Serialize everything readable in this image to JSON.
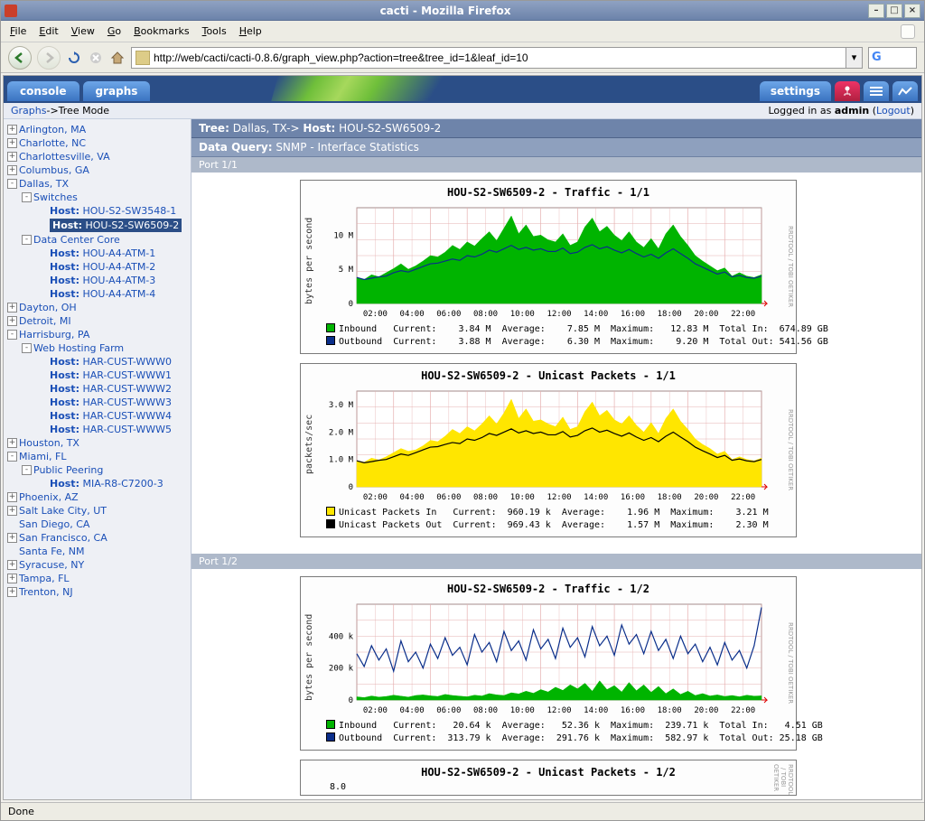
{
  "window": {
    "title": "cacti - Mozilla Firefox"
  },
  "menubar": [
    "File",
    "Edit",
    "View",
    "Go",
    "Bookmarks",
    "Tools",
    "Help"
  ],
  "url": "http://web/cacti/cacti-0.8.6/graph_view.php?action=tree&tree_id=1&leaf_id=10",
  "tabs": {
    "console": "console",
    "graphs": "graphs",
    "settings": "settings"
  },
  "breadcrumb": {
    "root": "Graphs",
    "sep": " -> ",
    "mode": "Tree Mode"
  },
  "login": {
    "prefix": "Logged in as ",
    "user": "admin",
    "logout": "Logout"
  },
  "tree": [
    {
      "l": 0,
      "exp": "+",
      "label": "Arlington, MA"
    },
    {
      "l": 0,
      "exp": "+",
      "label": "Charlotte, NC"
    },
    {
      "l": 0,
      "exp": "+",
      "label": "Charlottesville, VA"
    },
    {
      "l": 0,
      "exp": "+",
      "label": "Columbus, GA"
    },
    {
      "l": 0,
      "exp": "-",
      "label": "Dallas, TX"
    },
    {
      "l": 1,
      "exp": "-",
      "label": "Switches"
    },
    {
      "l": 2,
      "host": true,
      "label": "HOU-S2-SW3548-1"
    },
    {
      "l": 2,
      "host": true,
      "label": "HOU-S2-SW6509-2",
      "sel": true
    },
    {
      "l": 1,
      "exp": "-",
      "label": "Data Center Core"
    },
    {
      "l": 2,
      "host": true,
      "label": "HOU-A4-ATM-1"
    },
    {
      "l": 2,
      "host": true,
      "label": "HOU-A4-ATM-2"
    },
    {
      "l": 2,
      "host": true,
      "label": "HOU-A4-ATM-3"
    },
    {
      "l": 2,
      "host": true,
      "label": "HOU-A4-ATM-4"
    },
    {
      "l": 0,
      "exp": "+",
      "label": "Dayton, OH"
    },
    {
      "l": 0,
      "exp": "+",
      "label": "Detroit, MI"
    },
    {
      "l": 0,
      "exp": "-",
      "label": "Harrisburg, PA"
    },
    {
      "l": 1,
      "exp": "-",
      "label": "Web Hosting Farm"
    },
    {
      "l": 2,
      "host": true,
      "label": "HAR-CUST-WWW0"
    },
    {
      "l": 2,
      "host": true,
      "label": "HAR-CUST-WWW1"
    },
    {
      "l": 2,
      "host": true,
      "label": "HAR-CUST-WWW2"
    },
    {
      "l": 2,
      "host": true,
      "label": "HAR-CUST-WWW3"
    },
    {
      "l": 2,
      "host": true,
      "label": "HAR-CUST-WWW4"
    },
    {
      "l": 2,
      "host": true,
      "label": "HAR-CUST-WWW5"
    },
    {
      "l": 0,
      "exp": "+",
      "label": "Houston, TX"
    },
    {
      "l": 0,
      "exp": "-",
      "label": "Miami, FL"
    },
    {
      "l": 1,
      "exp": "-",
      "label": "Public Peering"
    },
    {
      "l": 2,
      "host": true,
      "label": "MIA-R8-C7200-3"
    },
    {
      "l": 0,
      "exp": "+",
      "label": "Phoenix, AZ"
    },
    {
      "l": 0,
      "exp": "+",
      "label": "Salt Lake City, UT"
    },
    {
      "l": 0,
      "exp": " ",
      "label": "San Diego, CA"
    },
    {
      "l": 0,
      "exp": "+",
      "label": "San Francisco, CA"
    },
    {
      "l": 0,
      "exp": " ",
      "label": "Santa Fe, NM"
    },
    {
      "l": 0,
      "exp": "+",
      "label": "Syracuse, NY"
    },
    {
      "l": 0,
      "exp": "+",
      "label": "Tampa, FL"
    },
    {
      "l": 0,
      "exp": "+",
      "label": "Trenton, NJ"
    }
  ],
  "header": {
    "tree_lbl": "Tree:",
    "tree_val": " Dallas, TX-> ",
    "host_lbl": "Host:",
    "host_val": " HOU-S2-SW6509-2",
    "dq_lbl": "Data Query:",
    "dq_val": " SNMP - Interface Statistics"
  },
  "ports": {
    "p1": "Port 1/1",
    "p2": "Port 1/2"
  },
  "charts": {
    "xticks": [
      "02:00",
      "04:00",
      "06:00",
      "08:00",
      "10:00",
      "12:00",
      "14:00",
      "16:00",
      "18:00",
      "20:00",
      "22:00"
    ],
    "grid_color": "#e6b0b0",
    "c1": {
      "title": "HOU-S2-SW6509-2 - Traffic - 1/1",
      "ylabel": "bytes per second",
      "yticks": [
        0,
        5,
        10
      ],
      "ytick_labels": [
        "0",
        "5 M",
        "10 M"
      ],
      "ymax": 14,
      "area_color": "#00b400",
      "line_color": "#0a2e8a",
      "area": [
        3.8,
        3.5,
        4.2,
        3.9,
        4.5,
        5.1,
        5.8,
        5.0,
        5.5,
        6.2,
        7.0,
        6.8,
        7.5,
        8.5,
        7.9,
        9.0,
        8.4,
        9.5,
        10.5,
        9.2,
        11.0,
        12.8,
        10.2,
        11.5,
        9.8,
        10.0,
        9.3,
        9.0,
        10.2,
        8.5,
        9.0,
        11.2,
        12.5,
        10.5,
        11.3,
        10.0,
        9.2,
        10.5,
        9.0,
        8.2,
        9.5,
        8.0,
        10.2,
        11.5,
        9.8,
        8.5,
        7.0,
        6.2,
        5.5,
        4.8,
        5.2,
        4.0,
        4.5,
        4.0,
        3.8,
        4.2
      ],
      "line": [
        3.8,
        3.5,
        3.7,
        3.9,
        4.0,
        4.5,
        4.8,
        4.6,
        5.0,
        5.4,
        5.8,
        5.9,
        6.2,
        6.5,
        6.3,
        7.0,
        6.8,
        7.2,
        7.8,
        7.5,
        8.0,
        8.5,
        7.9,
        8.2,
        7.8,
        8.0,
        7.6,
        7.6,
        8.1,
        7.3,
        7.5,
        8.2,
        8.6,
        8.0,
        8.3,
        7.8,
        7.4,
        7.9,
        7.3,
        6.8,
        7.2,
        6.6,
        7.4,
        8.0,
        7.3,
        6.6,
        5.8,
        5.3,
        4.8,
        4.3,
        4.6,
        3.9,
        4.1,
        3.8,
        3.7,
        4.0
      ],
      "legend": "<span class='sw' style='background:#00b400'></span>Inbound   Current:    3.84 M  Average:    7.85 M  Maximum:   12.83 M  Total In:  674.89 GB\n<span class='sw' style='background:#0a2e8a'></span>Outbound  Current:    3.88 M  Average:    6.30 M  Maximum:    9.20 M  Total Out: 541.56 GB"
    },
    "c2": {
      "title": "HOU-S2-SW6509-2 - Unicast Packets - 1/1",
      "ylabel": "packets/sec",
      "yticks": [
        0,
        1,
        2,
        3
      ],
      "ytick_labels": [
        "0",
        "1.0 M",
        "2.0 M",
        "3.0 M"
      ],
      "ymax": 3.5,
      "area_color": "#ffe600",
      "line_color": "#000000",
      "area": [
        0.95,
        0.9,
        1.05,
        0.98,
        1.1,
        1.25,
        1.4,
        1.3,
        1.35,
        1.5,
        1.7,
        1.65,
        1.85,
        2.1,
        1.95,
        2.2,
        2.05,
        2.3,
        2.6,
        2.3,
        2.7,
        3.2,
        2.5,
        2.85,
        2.4,
        2.45,
        2.3,
        2.2,
        2.55,
        2.1,
        2.2,
        2.75,
        3.1,
        2.6,
        2.8,
        2.45,
        2.3,
        2.6,
        2.25,
        2.0,
        2.35,
        1.95,
        2.5,
        2.85,
        2.4,
        2.1,
        1.75,
        1.55,
        1.4,
        1.2,
        1.3,
        1.0,
        1.1,
        1.0,
        0.95,
        1.05
      ],
      "line": [
        0.95,
        0.88,
        0.92,
        0.97,
        1.0,
        1.1,
        1.2,
        1.15,
        1.25,
        1.35,
        1.45,
        1.47,
        1.55,
        1.62,
        1.58,
        1.75,
        1.7,
        1.8,
        1.95,
        1.88,
        2.0,
        2.12,
        1.97,
        2.05,
        1.95,
        2.0,
        1.9,
        1.9,
        2.02,
        1.82,
        1.88,
        2.05,
        2.15,
        2.0,
        2.07,
        1.95,
        1.85,
        1.97,
        1.82,
        1.7,
        1.8,
        1.65,
        1.85,
        2.0,
        1.82,
        1.65,
        1.45,
        1.32,
        1.2,
        1.07,
        1.15,
        0.97,
        1.02,
        0.95,
        0.92,
        1.0
      ],
      "legend": "<span class='sw' style='background:#ffe600'></span>Unicast Packets In   Current:  960.19 k  Average:    1.96 M  Maximum:    3.21 M\n<span class='sw' style='background:#000000'></span>Unicast Packets Out  Current:  969.43 k  Average:    1.57 M  Maximum:    2.30 M"
    },
    "c3": {
      "title": "HOU-S2-SW6509-2 - Traffic - 1/2",
      "ylabel": "bytes per second",
      "yticks": [
        0,
        200,
        400
      ],
      "ytick_labels": [
        "0",
        "200 k",
        "400 k"
      ],
      "ymax": 600,
      "area_color": "#00b400",
      "line_color": "#0a2e8a",
      "area": [
        20,
        15,
        25,
        18,
        22,
        30,
        24,
        18,
        28,
        32,
        26,
        22,
        35,
        28,
        24,
        20,
        30,
        25,
        40,
        32,
        28,
        45,
        38,
        55,
        42,
        65,
        50,
        80,
        60,
        95,
        70,
        105,
        55,
        120,
        65,
        90,
        50,
        110,
        58,
        95,
        48,
        85,
        40,
        70,
        35,
        55,
        28,
        40,
        25,
        32,
        22,
        28,
        20,
        30,
        24,
        26
      ],
      "line": [
        290,
        210,
        340,
        250,
        320,
        180,
        370,
        240,
        300,
        200,
        350,
        260,
        390,
        280,
        330,
        220,
        410,
        300,
        360,
        240,
        430,
        310,
        370,
        250,
        440,
        320,
        380,
        260,
        450,
        330,
        390,
        270,
        460,
        340,
        400,
        280,
        470,
        350,
        410,
        290,
        430,
        310,
        380,
        260,
        400,
        290,
        350,
        240,
        330,
        220,
        360,
        250,
        310,
        200,
        340,
        580
      ],
      "legend": "<span class='sw' style='background:#00b400'></span>Inbound   Current:   20.64 k  Average:   52.36 k  Maximum:  239.71 k  Total In:   4.51 GB\n<span class='sw' style='background:#0a2e8a'></span>Outbound  Current:  313.79 k  Average:  291.76 k  Maximum:  582.97 k  Total Out: 25.18 GB"
    },
    "c4": {
      "title": "HOU-S2-SW6509-2 - Unicast Packets - 1/2",
      "ytick0": "8.0"
    }
  },
  "status": "Done",
  "sidetext": "RRDTOOL / TOBI OETIKER"
}
